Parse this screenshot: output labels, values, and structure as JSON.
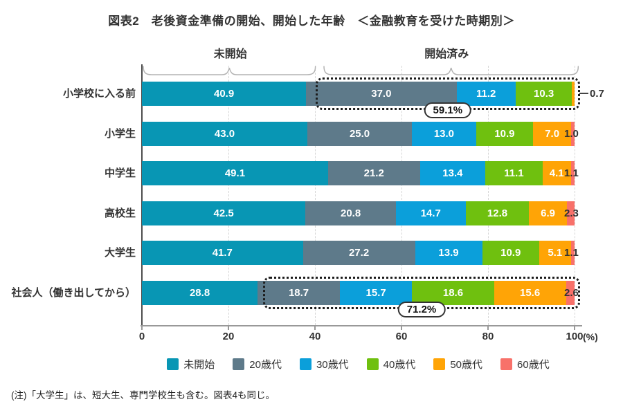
{
  "title": "図表2　老後資金準備の開始、開始した年齢　＜金融教育を受けた時期別＞",
  "footnote": "(注)「大学生」は、短大生、専門学校生も含む。図表4も同じ。",
  "chart_data": {
    "type": "bar",
    "stacked": true,
    "orientation": "horizontal",
    "unit": "%",
    "title": "図表2　老後資金準備の開始、開始した年齢　＜金融教育を受けた時期別＞",
    "x_ticks": [
      0,
      20,
      40,
      60,
      80,
      100
    ],
    "xlim": [
      0,
      100
    ],
    "axis_suffix": "(%)",
    "grid": "dashed-vertical",
    "legend_position": "bottom",
    "min_inside_label": 4,
    "categories": [
      "小学校に入る前",
      "小学生",
      "中学生",
      "高校生",
      "大学生",
      "社会人（働き出してから）"
    ],
    "series": [
      {
        "name": "未開始",
        "color": "#0896B4",
        "values": [
          40.9,
          43.0,
          49.1,
          42.5,
          41.7,
          28.8
        ]
      },
      {
        "name": "20歳代",
        "color": "#5E7A8A",
        "values": [
          37.0,
          25.0,
          21.2,
          20.8,
          27.2,
          18.7
        ]
      },
      {
        "name": "30歳代",
        "color": "#0B9FDA",
        "values": [
          11.2,
          13.0,
          13.4,
          14.7,
          13.9,
          15.7
        ]
      },
      {
        "name": "40歳代",
        "color": "#6FC00F",
        "values": [
          10.3,
          10.9,
          11.1,
          12.8,
          10.9,
          18.6
        ]
      },
      {
        "name": "50歳代",
        "color": "#FFA406",
        "values": [
          0.7,
          7.0,
          4.1,
          6.9,
          5.1,
          15.6
        ]
      },
      {
        "name": "60歳代",
        "color": "#F8716A",
        "values": [
          0.0,
          1.0,
          1.1,
          2.3,
          1.1,
          2.6
        ]
      }
    ],
    "group_brackets": [
      {
        "label": "未開始",
        "from": 0,
        "to": 40.9
      },
      {
        "label": "開始済み",
        "from": 40.9,
        "to": 100
      }
    ],
    "outside_labels": [
      {
        "row": 0,
        "text": "0.7",
        "leader": true
      },
      {
        "row": 1,
        "text": "1.0"
      },
      {
        "row": 2,
        "text": "1.1"
      },
      {
        "row": 3,
        "text": "2.3"
      },
      {
        "row": 4,
        "text": "1.1"
      },
      {
        "row": 5,
        "text": "2.6"
      }
    ],
    "highlights": [
      {
        "row": 0,
        "label": "59.1%"
      },
      {
        "row": 5,
        "label": "71.2%"
      }
    ]
  }
}
